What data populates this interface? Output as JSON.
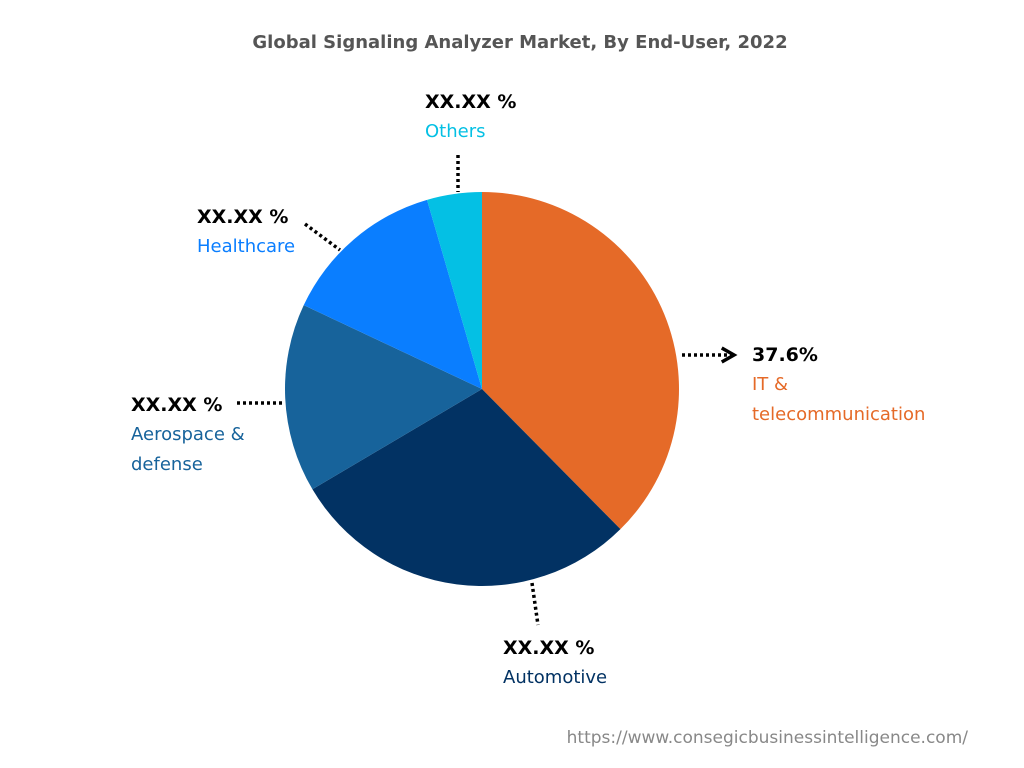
{
  "chart_data": {
    "type": "pie",
    "title": "Global Signaling Analyzer Market, By End-User, 2022",
    "categories": [
      "IT & telecommunication",
      "Automotive",
      "Aerospace & defense",
      "Healthcare",
      "Others"
    ],
    "values": [
      37.6,
      28.9,
      15.5,
      13.5,
      4.5
    ],
    "value_labels": [
      "37.6%",
      "XX.XX %",
      "XX.XX %",
      "XX.XX %",
      "XX.XX %"
    ],
    "colors": [
      "#e56a28",
      "#023263",
      "#17639b",
      "#0a7eff",
      "#04c0e4"
    ],
    "source": "https://www.consegicbusinessintelligence.com/"
  }
}
